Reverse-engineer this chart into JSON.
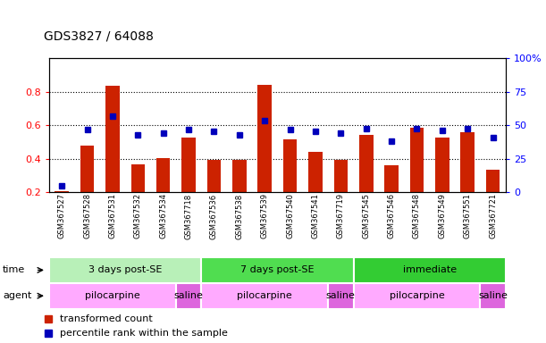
{
  "title": "GDS3827 / 64088",
  "samples": [
    "GSM367527",
    "GSM367528",
    "GSM367531",
    "GSM367532",
    "GSM367534",
    "GSM367718",
    "GSM367536",
    "GSM367538",
    "GSM367539",
    "GSM367540",
    "GSM367541",
    "GSM367719",
    "GSM367545",
    "GSM367546",
    "GSM367548",
    "GSM367549",
    "GSM367551",
    "GSM367721"
  ],
  "red_values": [
    0.205,
    0.48,
    0.835,
    0.365,
    0.405,
    0.525,
    0.395,
    0.395,
    0.84,
    0.515,
    0.44,
    0.39,
    0.54,
    0.36,
    0.585,
    0.525,
    0.56,
    0.335
  ],
  "blue_values_pct": [
    5,
    47,
    56.5,
    43,
    44,
    47,
    45.5,
    42.5,
    53.5,
    47,
    45.5,
    44,
    47.5,
    38,
    47.5,
    46,
    47.5,
    41
  ],
  "time_groups": [
    {
      "label": "3 days post-SE",
      "start": 0,
      "end": 6,
      "color": "#b8f0b8"
    },
    {
      "label": "7 days post-SE",
      "start": 6,
      "end": 12,
      "color": "#50dd50"
    },
    {
      "label": "immediate",
      "start": 12,
      "end": 18,
      "color": "#33cc33"
    }
  ],
  "agent_groups": [
    {
      "label": "pilocarpine",
      "start": 0,
      "end": 5,
      "color": "#ffaaff"
    },
    {
      "label": "saline",
      "start": 5,
      "end": 6,
      "color": "#dd66dd"
    },
    {
      "label": "pilocarpine",
      "start": 6,
      "end": 11,
      "color": "#ffaaff"
    },
    {
      "label": "saline",
      "start": 11,
      "end": 12,
      "color": "#dd66dd"
    },
    {
      "label": "pilocarpine",
      "start": 12,
      "end": 17,
      "color": "#ffaaff"
    },
    {
      "label": "saline",
      "start": 17,
      "end": 18,
      "color": "#dd66dd"
    }
  ],
  "ylim": [
    0.2,
    1.0
  ],
  "yticks": [
    0.2,
    0.4,
    0.6,
    0.8
  ],
  "ytick_labels": [
    "0.2",
    "0.4",
    "0.6",
    "0.8"
  ],
  "y2ticks": [
    0,
    25,
    50,
    75,
    100
  ],
  "y2tick_labels": [
    "0",
    "25",
    "50",
    "75",
    "100%"
  ],
  "bar_color": "#cc2200",
  "dot_color": "#0000bb",
  "bg_color": "#ffffff",
  "legend_items": [
    {
      "label": "transformed count",
      "color": "#cc2200"
    },
    {
      "label": "percentile rank within the sample",
      "color": "#0000bb"
    }
  ]
}
